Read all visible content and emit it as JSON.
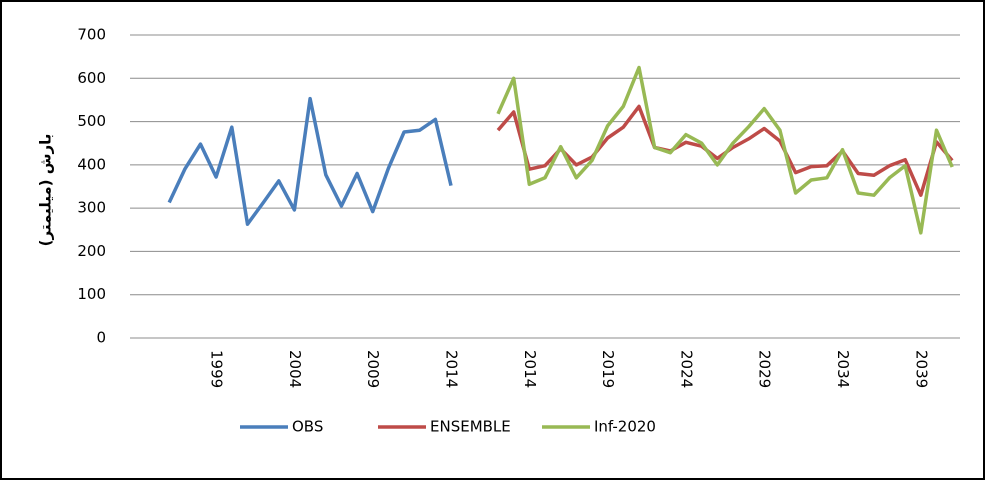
{
  "chart_data": {
    "type": "line",
    "y_label": "بارش (میلیمتر)",
    "categories": [
      null,
      null,
      null,
      null,
      null,
      "1999",
      null,
      null,
      null,
      null,
      "2004",
      null,
      null,
      null,
      null,
      "2009",
      null,
      null,
      null,
      null,
      "2014",
      null,
      null,
      null,
      null,
      "2014",
      null,
      null,
      null,
      null,
      "2019",
      null,
      null,
      null,
      null,
      "2024",
      null,
      null,
      null,
      null,
      "2029",
      null,
      null,
      null,
      null,
      "2034",
      null,
      null,
      null,
      null,
      "2039",
      null,
      null
    ],
    "series": [
      {
        "name": "OBS",
        "color": "#4a7ebb",
        "values": [
          null,
          null,
          313,
          390,
          448,
          372,
          487,
          263,
          312,
          363,
          296,
          553,
          377,
          305,
          380,
          292,
          392,
          476,
          480,
          505,
          352,
          null,
          null,
          null,
          null,
          null,
          null,
          null,
          null,
          null,
          null,
          null,
          null,
          null,
          null,
          null,
          null,
          null,
          null,
          null,
          null,
          null,
          null,
          null,
          null,
          null,
          null,
          null,
          null,
          null,
          null,
          null,
          null
        ]
      },
      {
        "name": "ENSEMBLE",
        "color": "#be4b48",
        "values": [
          null,
          null,
          null,
          null,
          null,
          null,
          null,
          null,
          null,
          null,
          null,
          null,
          null,
          null,
          null,
          null,
          null,
          null,
          null,
          null,
          null,
          null,
          null,
          480,
          522,
          390,
          398,
          437,
          400,
          418,
          462,
          487,
          535,
          440,
          432,
          452,
          443,
          415,
          440,
          460,
          484,
          455,
          382,
          396,
          398,
          432,
          380,
          376,
          398,
          412,
          330,
          453,
          410
        ]
      },
      {
        "name": "Inf-2020",
        "color": "#98b954",
        "values": [
          null,
          null,
          null,
          null,
          null,
          null,
          null,
          null,
          null,
          null,
          null,
          null,
          null,
          null,
          null,
          null,
          null,
          null,
          null,
          null,
          null,
          null,
          null,
          518,
          600,
          355,
          370,
          442,
          370,
          410,
          490,
          535,
          625,
          440,
          428,
          470,
          450,
          400,
          450,
          488,
          530,
          480,
          335,
          365,
          370,
          435,
          335,
          330,
          370,
          398,
          243,
          480,
          395
        ]
      }
    ],
    "ylim": [
      0,
      700
    ],
    "yticks": [
      0,
      100,
      200,
      300,
      400,
      500,
      600,
      700
    ],
    "grid": true,
    "legend": "bottom"
  }
}
